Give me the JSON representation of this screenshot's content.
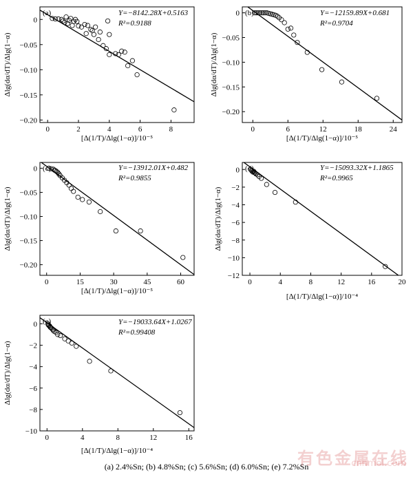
{
  "caption": "(a)  2.4%Sn; (b) 4.8%Sn; (c) 5.6%Sn; (d) 6.0%Sn; (e) 7.2%Sn",
  "watermark": {
    "text": "有色金属在线",
    "url": "cnnmol.com",
    "color": "#c82828"
  },
  "chart_data": [
    {
      "type": "scatter",
      "panel": "(a)",
      "xlabel": "[Δ(1/T)/Δlg(1−α)]/10⁻⁵",
      "ylabel": "Δlg(dα/dT)/Δlg(1−α)",
      "xlim": [
        -0.5,
        9.5
      ],
      "ylim": [
        -0.205,
        0.025
      ],
      "xticks": [
        0,
        2,
        4,
        6,
        8
      ],
      "yticks": [
        0,
        -0.05,
        -0.1,
        -0.15,
        -0.2
      ],
      "yticklabels": [
        "0",
        "−0.05",
        "−0.10",
        "−0.15",
        "−0.20"
      ],
      "equation": "Y=−8142.28X+0.5163",
      "r2": "R²=0.9188",
      "fit": {
        "slope": -0.01822,
        "intercept": 0.0094
      },
      "points": [
        [
          0.3,
          0.002
        ],
        [
          0.5,
          0.001
        ],
        [
          0.7,
          0.001
        ],
        [
          0.9,
          0
        ],
        [
          1.0,
          -0.003
        ],
        [
          1.1,
          -0.006
        ],
        [
          1.2,
          0.005
        ],
        [
          1.3,
          -0.008
        ],
        [
          1.4,
          -0.002
        ],
        [
          1.5,
          0.002
        ],
        [
          1.6,
          -0.012
        ],
        [
          1.7,
          -0.004
        ],
        [
          1.8,
          0
        ],
        [
          1.9,
          -0.004
        ],
        [
          2.0,
          -0.013
        ],
        [
          2.2,
          -0.015
        ],
        [
          2.4,
          -0.01
        ],
        [
          2.5,
          -0.028
        ],
        [
          2.6,
          -0.012
        ],
        [
          2.8,
          -0.02
        ],
        [
          2.9,
          -0.022
        ],
        [
          3.0,
          -0.03
        ],
        [
          3.1,
          -0.015
        ],
        [
          3.3,
          -0.04
        ],
        [
          3.4,
          -0.025
        ],
        [
          3.6,
          -0.052
        ],
        [
          3.8,
          -0.058
        ],
        [
          3.9,
          -0.003
        ],
        [
          4.0,
          -0.03
        ],
        [
          4.0,
          -0.07
        ],
        [
          4.4,
          -0.068
        ],
        [
          4.6,
          -0.07
        ],
        [
          4.8,
          -0.063
        ],
        [
          5.0,
          -0.065
        ],
        [
          5.2,
          -0.092
        ],
        [
          5.5,
          -0.082
        ],
        [
          5.8,
          -0.11
        ],
        [
          8.2,
          -0.18
        ]
      ]
    },
    {
      "type": "scatter",
      "panel": "(b)",
      "xlabel": "[Δ(1/T)/Δlg(1−α)]/10⁻⁵",
      "ylabel": "Δlg(dα/dT)/Δlg(1−α)",
      "xlim": [
        -1.8,
        25.5
      ],
      "ylim": [
        -0.222,
        0.012
      ],
      "xticks": [
        0,
        6,
        12,
        18,
        24
      ],
      "yticks": [
        0,
        -0.05,
        -0.1,
        -0.15,
        -0.2
      ],
      "yticklabels": [
        "0",
        "−0.05",
        "−0.10",
        "−0.15",
        "−0.20"
      ],
      "equation": "Y=−12159.89X+0.681",
      "r2": "R²=0.9704",
      "fit": {
        "slope": -0.00868,
        "intercept": 0.0045
      },
      "points": [
        [
          0.3,
          0
        ],
        [
          0.6,
          0
        ],
        [
          0.9,
          0
        ],
        [
          1.2,
          0
        ],
        [
          1.5,
          0
        ],
        [
          1.8,
          0
        ],
        [
          2.1,
          0
        ],
        [
          2.4,
          0
        ],
        [
          2.7,
          -0.001
        ],
        [
          3.0,
          -0.002
        ],
        [
          3.3,
          -0.003
        ],
        [
          3.6,
          -0.004
        ],
        [
          3.9,
          -0.005
        ],
        [
          4.2,
          -0.007
        ],
        [
          4.5,
          -0.01
        ],
        [
          4.9,
          -0.014
        ],
        [
          5.4,
          -0.02
        ],
        [
          6.0,
          -0.033
        ],
        [
          6.5,
          -0.031
        ],
        [
          7.0,
          -0.045
        ],
        [
          7.6,
          -0.06
        ],
        [
          9.3,
          -0.08
        ],
        [
          11.8,
          -0.115
        ],
        [
          15.2,
          -0.14
        ],
        [
          21.2,
          -0.173
        ]
      ]
    },
    {
      "type": "scatter",
      "panel": "(c)",
      "xlabel": "[Δ(1/T)/Δlg(1−α)]/10⁻⁵",
      "ylabel": "Δlg(dα/dT)/Δlg(1−α)",
      "xlim": [
        -3,
        66
      ],
      "ylim": [
        -0.222,
        0.012
      ],
      "xticks": [
        0,
        15,
        30,
        45,
        60
      ],
      "yticks": [
        0,
        -0.05,
        -0.1,
        -0.15,
        -0.2
      ],
      "yticklabels": [
        "0",
        "−0.05",
        "−0.10",
        "−0.15",
        "−0.20"
      ],
      "equation": "Y=−13912.01X+0.482",
      "r2": "R²=0.9855",
      "fit": {
        "slope": -0.0034,
        "intercept": 0.004
      },
      "points": [
        [
          1.0,
          0
        ],
        [
          2.0,
          -0.001
        ],
        [
          3.0,
          -0.002
        ],
        [
          3.5,
          -0.004
        ],
        [
          4.0,
          -0.005
        ],
        [
          4.5,
          -0.007
        ],
        [
          5.0,
          -0.009
        ],
        [
          5.5,
          -0.012
        ],
        [
          6.0,
          -0.015
        ],
        [
          7.0,
          -0.02
        ],
        [
          8.0,
          -0.025
        ],
        [
          9.0,
          -0.03
        ],
        [
          10.0,
          -0.035
        ],
        [
          11.0,
          -0.042
        ],
        [
          12.0,
          -0.048
        ],
        [
          14.0,
          -0.06
        ],
        [
          16.0,
          -0.065
        ],
        [
          19.0,
          -0.07
        ],
        [
          24.0,
          -0.09
        ],
        [
          31.0,
          -0.13
        ],
        [
          42.0,
          -0.13
        ],
        [
          61.0,
          -0.185
        ]
      ]
    },
    {
      "type": "scatter",
      "panel": "(d)",
      "xlabel": "[Δ(1/T)/Δlg(1−α)]/10⁻⁴",
      "ylabel": "Δlg(dα/dT)/Δlg(1−α)",
      "xlim": [
        -1,
        20
      ],
      "ylim": [
        -12,
        0.8
      ],
      "xticks": [
        0,
        4,
        8,
        12,
        16,
        20
      ],
      "yticks": [
        0,
        -2,
        -4,
        -6,
        -8,
        -10,
        -12
      ],
      "yticklabels": [
        "0",
        "−2",
        "−4",
        "−6",
        "−8",
        "−10",
        "−12"
      ],
      "equation": "Y=−15093.32X+1.1865",
      "r2": "R²=0.9965",
      "fit": {
        "slope": -0.63,
        "intercept": 0.3
      },
      "points": [
        [
          0.1,
          0
        ],
        [
          0.2,
          -0.1
        ],
        [
          0.3,
          -0.2
        ],
        [
          0.4,
          -0.3
        ],
        [
          0.5,
          -0.2
        ],
        [
          0.6,
          -0.35
        ],
        [
          0.7,
          -0.4
        ],
        [
          0.8,
          -0.5
        ],
        [
          1.0,
          -0.6
        ],
        [
          1.2,
          -0.8
        ],
        [
          1.5,
          -1.0
        ],
        [
          2.2,
          -1.7
        ],
        [
          3.3,
          -2.6
        ],
        [
          6.0,
          -3.7
        ],
        [
          17.8,
          -11.0
        ]
      ]
    },
    {
      "type": "scatter",
      "panel": "(e)",
      "xlabel": "[Δ(1/T)/Δlg(1−α)]/10⁻⁴",
      "ylabel": "Δlg(dα/dT)/Δlg(1−α)",
      "xlim": [
        -0.8,
        16.6
      ],
      "ylim": [
        -10,
        0.8
      ],
      "xticks": [
        0,
        4,
        8,
        12,
        16
      ],
      "yticks": [
        0,
        -2,
        -4,
        -6,
        -8,
        -10
      ],
      "yticklabels": [
        "0",
        "−2",
        "−4",
        "−6",
        "−8",
        "−10"
      ],
      "equation": "Y=−19033.64X+1.0267",
      "r2": "R²=0.99408",
      "fit": {
        "slope": -0.59,
        "intercept": 0.1
      },
      "points": [
        [
          0.1,
          0
        ],
        [
          0.15,
          -0.1
        ],
        [
          0.2,
          -0.15
        ],
        [
          0.3,
          -0.2
        ],
        [
          0.35,
          -0.3
        ],
        [
          0.4,
          -0.35
        ],
        [
          0.5,
          -0.4
        ],
        [
          0.6,
          -0.5
        ],
        [
          0.7,
          -0.6
        ],
        [
          0.8,
          -0.7
        ],
        [
          1.0,
          -0.8
        ],
        [
          1.2,
          -1.0
        ],
        [
          1.5,
          -1.1
        ],
        [
          2.0,
          -1.4
        ],
        [
          2.4,
          -1.6
        ],
        [
          2.8,
          -1.8
        ],
        [
          3.3,
          -2.1
        ],
        [
          4.8,
          -3.5
        ],
        [
          7.2,
          -4.4
        ],
        [
          15.0,
          -8.3
        ]
      ]
    }
  ]
}
